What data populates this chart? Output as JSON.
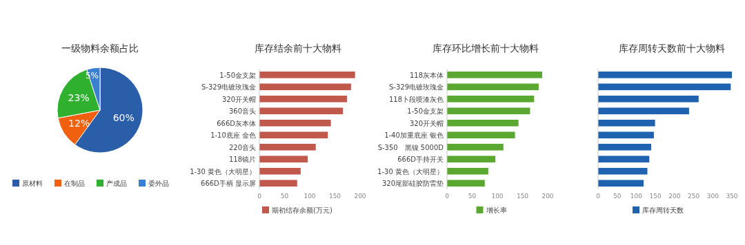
{
  "chart_data": [
    {
      "type": "pie",
      "title": "一级物料余额占比",
      "categories": [
        "原材料",
        "在制品",
        "产成品",
        "委外品"
      ],
      "values": [
        60,
        12,
        23,
        5
      ],
      "colors": [
        "#2a5ea8",
        "#f0600f",
        "#2fb02f",
        "#3b7fd0"
      ],
      "value_labels": [
        "60%",
        "12%",
        "23%",
        "5%"
      ],
      "legend": "bottom"
    },
    {
      "type": "bar",
      "orientation": "horizontal",
      "title": "库存结余前十大物料",
      "categories": [
        "1-50金支架",
        "S-329电镀玫瑰金",
        "320开关帽",
        "360音头",
        "666D灰本体",
        "1-10底座 金色",
        "220音头",
        "118镜片",
        "1-30 黄色（大明星）",
        "666D手柄 显示屏"
      ],
      "series": [
        {
          "name": "期初结存余额(万元)",
          "color": "#c0584c",
          "values": [
            190,
            182,
            174,
            166,
            142,
            136,
            112,
            96,
            82,
            75
          ]
        }
      ],
      "xlim": [
        0,
        200
      ],
      "xticks": [
        0,
        50,
        100,
        150,
        200
      ],
      "legend": "bottom"
    },
    {
      "type": "bar",
      "orientation": "horizontal",
      "title": "库存环比增长前十大物料",
      "categories": [
        "118灰本体",
        "S-329电镀玫瑰金",
        "118卜段喷漆灰色",
        "1-50金支架",
        "320开关帽",
        "1-40加重底座 银色",
        "S-350　黑镍 5000D",
        "666D手持开关",
        "1-30 黄色（大明星）",
        "320尾部硅胶防雷垫"
      ],
      "series": [
        {
          "name": "增长率",
          "color": "#5aa832",
          "values": [
            189,
            182,
            173,
            165,
            142,
            135,
            112,
            96,
            82,
            75
          ]
        }
      ],
      "xlim": [
        0,
        200
      ],
      "xticks": [
        0,
        50,
        100,
        150,
        200
      ],
      "legend": "bottom"
    },
    {
      "type": "bar",
      "orientation": "horizontal",
      "title": "库存周转天数前十大物料",
      "categories": [
        null,
        null,
        null,
        null,
        null,
        null,
        null,
        null,
        null,
        null
      ],
      "series": [
        {
          "name": "库存周转天数",
          "color": "#1f63b0",
          "values": [
            350,
            347,
            263,
            238,
            149,
            146,
            139,
            134,
            129,
            119
          ]
        }
      ],
      "xlim": [
        0,
        350
      ],
      "xticks": [
        0,
        50,
        100,
        150,
        200,
        250,
        300,
        350
      ],
      "legend": "bottom"
    }
  ]
}
